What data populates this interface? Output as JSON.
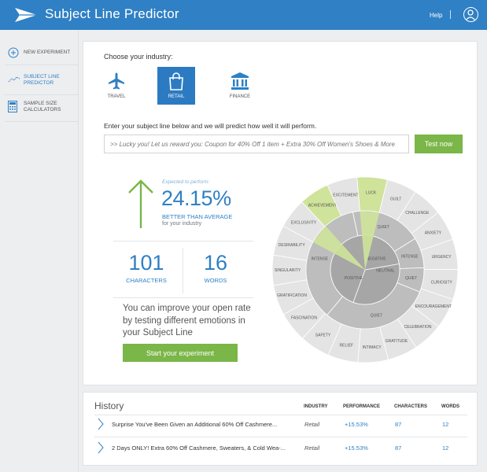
{
  "header": {
    "title": "Subject Line Predictor",
    "help": "Help",
    "sep": "|"
  },
  "sidebar": {
    "items": [
      {
        "label": "NEW EXPERIMENT",
        "icon": "plus-circle-icon"
      },
      {
        "label": "SUBJECT LINE PREDICTOR",
        "icon": "trend-line-icon",
        "active": true
      },
      {
        "label": "SAMPLE SIZE CALCULATORS",
        "icon": "calculator-icon"
      }
    ]
  },
  "predictor": {
    "choose_label": "Choose your industry:",
    "industries": [
      {
        "label": "TRAVEL",
        "icon": "airplane-icon"
      },
      {
        "label": "RETAIL",
        "icon": "shopping-bag-icon",
        "selected": true
      },
      {
        "label": "FINANCE",
        "icon": "bank-icon"
      }
    ],
    "enter_label": "Enter your subject line below and we will predict how well it will perform.",
    "input_placeholder": ">> Lucky you! Let us reward you: Coupon for 40% Off 1 item + Extra 30% Off Women's Shoes & More",
    "test_button": "Test now",
    "expected_label": "Expected to perform:",
    "percent": "24.15%",
    "better_label": "BETTER THAN AVERAGE",
    "industry_note": "for your industry",
    "characters_value": "101",
    "characters_label": "CHARACTERS",
    "words_value": "16",
    "words_label": "WORDS",
    "improve_text": "You can improve your open rate by testing different emotions in your Subject Line",
    "start_button": "Start your experiment"
  },
  "emotion_wheel": {
    "inner": [
      "POSITIVE",
      "NEGATIVE",
      "NEUTRAL"
    ],
    "middle": [
      "INTENSE",
      "QUIET",
      "INTENSE",
      "QUIET",
      "QUIET"
    ],
    "outer": [
      "LUCK",
      "GUILT",
      "CHALLENGE",
      "ANXIETY",
      "URGENCY",
      "CURIOSITY",
      "ENCOURAGEMENT",
      "CELEBRATION",
      "GRATITUDE",
      "INTIMACY",
      "RELIEF",
      "SAFETY",
      "FASCINATION",
      "GRATIFICATION",
      "SINGULARITY",
      "DESIRABILITY",
      "EXCLUSIVITY",
      "ACHIEVEMENT",
      "EXCITEMENT"
    ],
    "highlighted": [
      "LUCK",
      "ACHIEVEMENT"
    ],
    "colors": {
      "highlight": "#cfe39a",
      "outer": "#e4e4e4",
      "middle": "#bdbdbd",
      "inner": "#a6a6a6"
    }
  },
  "history": {
    "title": "History",
    "columns": [
      "INDUSTRY",
      "PERFORMANCE",
      "CHARACTERS",
      "WORDS"
    ],
    "rows": [
      {
        "subject": "Surprise You've Been Given an Additional 60% Off Cashmere...",
        "industry": "Retail",
        "performance": "+15.53%",
        "characters": "87",
        "words": "12"
      },
      {
        "subject": "2 Days ONLY! Extra 60% Off Cashmere, Sweaters, & Cold Wea-...",
        "industry": "Retail",
        "performance": "+15.53%",
        "characters": "87",
        "words": "12"
      }
    ]
  }
}
